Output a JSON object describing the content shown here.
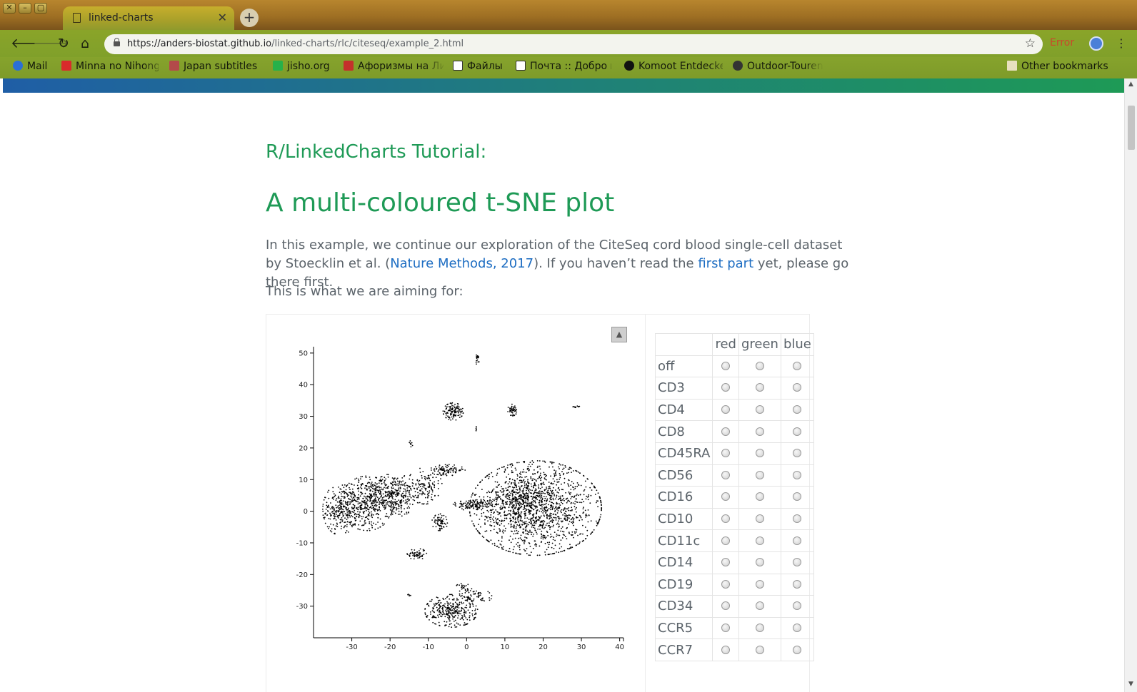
{
  "browser": {
    "window_buttons": [
      "✕",
      "–",
      "▢"
    ],
    "tab_title": "linked-charts",
    "tab_close": "✕",
    "new_tab": "+",
    "url_host": "https://anders-biostat.github.io",
    "url_path": "/linked-charts/rlc/citeseq/example_2.html",
    "error_label": "Error",
    "bookmarks": [
      {
        "label": "Mail",
        "icon": "mail-icon",
        "color": "#2b6fd6"
      },
      {
        "label": "Minna no Nihongo",
        "icon": "minna-icon",
        "color": "#d92b2b"
      },
      {
        "label": "Japan subtitles",
        "icon": "japan-subtitles-icon",
        "color": "#b34a4a"
      },
      {
        "label": "jisho.org",
        "icon": "jisho-icon",
        "color": "#27b14a"
      },
      {
        "label": "Афоризмы на Ли",
        "icon": "aphorisms-icon",
        "color": "#c4302b"
      },
      {
        "label": "Файлы",
        "icon": "document-icon",
        "color": "#ffffff"
      },
      {
        "label": "Почта :: Добро пожаловать",
        "icon": "mail-envelope-icon",
        "color": "#ffffff"
      },
      {
        "label": "Komoot Entdecken",
        "icon": "komoot-icon",
        "color": "#111111"
      },
      {
        "label": "Outdoor-Touren",
        "icon": "outdoor-icon",
        "color": "#333333"
      }
    ],
    "other_bookmarks": "Other bookmarks"
  },
  "page": {
    "kicker": "R/LinkedCharts Tutorial:",
    "headline": "A multi-coloured t-SNE plot",
    "intro_before_link1": "In this example, we continue our exploration of the CiteSeq cord blood single-cell dataset by Stoecklin et al. (",
    "intro_link1": "Nature Methods, 2017",
    "intro_between": "). If you haven’t read the ",
    "intro_link2": "first part",
    "intro_after": " yet, please go there first.",
    "aiming": "This is what we are aiming for:",
    "collapse_symbol": "▲"
  },
  "marker_table": {
    "columns": [
      "red",
      "green",
      "blue"
    ],
    "rows": [
      "off",
      "CD3",
      "CD4",
      "CD8",
      "CD45RA",
      "CD56",
      "CD16",
      "CD10",
      "CD11c",
      "CD14",
      "CD19",
      "CD34",
      "CCR5",
      "CCR7"
    ]
  },
  "chart_data": {
    "type": "scatter",
    "title": "",
    "xlabel": "",
    "ylabel": "",
    "xlim": [
      -40,
      41
    ],
    "ylim": [
      -40,
      52
    ],
    "x_ticks": [
      -30,
      -20,
      -10,
      0,
      10,
      20,
      30,
      40
    ],
    "y_ticks": [
      50,
      40,
      30,
      20,
      10,
      0,
      -10,
      -20,
      -30
    ],
    "point_color": "#000000",
    "grid": false,
    "clusters": [
      {
        "cx": 2,
        "cy": 2,
        "rx": 4.8,
        "ry": 1.6,
        "n": 120
      },
      {
        "cx": -33,
        "cy": 0.5,
        "rx": 4,
        "ry": 7,
        "n": 260
      },
      {
        "cx": -26,
        "cy": 2.5,
        "rx": 6,
        "ry": 7.5,
        "n": 420
      },
      {
        "cx": -19,
        "cy": 5,
        "rx": 5.5,
        "ry": 6,
        "n": 320
      },
      {
        "cx": -11,
        "cy": 8,
        "rx": 4,
        "ry": 5,
        "n": 140
      },
      {
        "cx": -5,
        "cy": 13,
        "rx": 4,
        "ry": 1.5,
        "n": 90
      },
      {
        "cx": -7,
        "cy": -3.5,
        "rx": 1.8,
        "ry": 2.3,
        "n": 70
      },
      {
        "cx": -13,
        "cy": -13.5,
        "rx": 2.2,
        "ry": 1.6,
        "n": 60
      },
      {
        "cx": 18,
        "cy": 1,
        "rx": 15,
        "ry": 13,
        "n": 1500
      },
      {
        "cx": 13,
        "cy": 4,
        "rx": 6,
        "ry": 5,
        "n": 180
      },
      {
        "cx": -3.5,
        "cy": 31.5,
        "rx": 2.3,
        "ry": 2.4,
        "n": 120
      },
      {
        "cx": 12,
        "cy": 32,
        "rx": 1.1,
        "ry": 1.6,
        "n": 45
      },
      {
        "cx": 2.8,
        "cy": 48,
        "rx": 0.5,
        "ry": 1.8,
        "n": 18
      },
      {
        "cx": 28.5,
        "cy": 33,
        "rx": 1.0,
        "ry": 0.3,
        "n": 10
      },
      {
        "cx": -14.5,
        "cy": 21.5,
        "rx": 0.4,
        "ry": 1.0,
        "n": 8
      },
      {
        "cx": -4,
        "cy": -31.5,
        "rx": 6,
        "ry": 4.5,
        "n": 320
      },
      {
        "cx": 2,
        "cy": -27,
        "rx": 4,
        "ry": 2.2,
        "n": 70
      },
      {
        "cx": -1,
        "cy": -24,
        "rx": 1.5,
        "ry": 1.2,
        "n": 20
      },
      {
        "cx": -15,
        "cy": -26.5,
        "rx": 0.6,
        "ry": 0.4,
        "n": 5
      },
      {
        "cx": 2.5,
        "cy": 26,
        "rx": 0.6,
        "ry": 0.6,
        "n": 5
      }
    ],
    "points": []
  }
}
